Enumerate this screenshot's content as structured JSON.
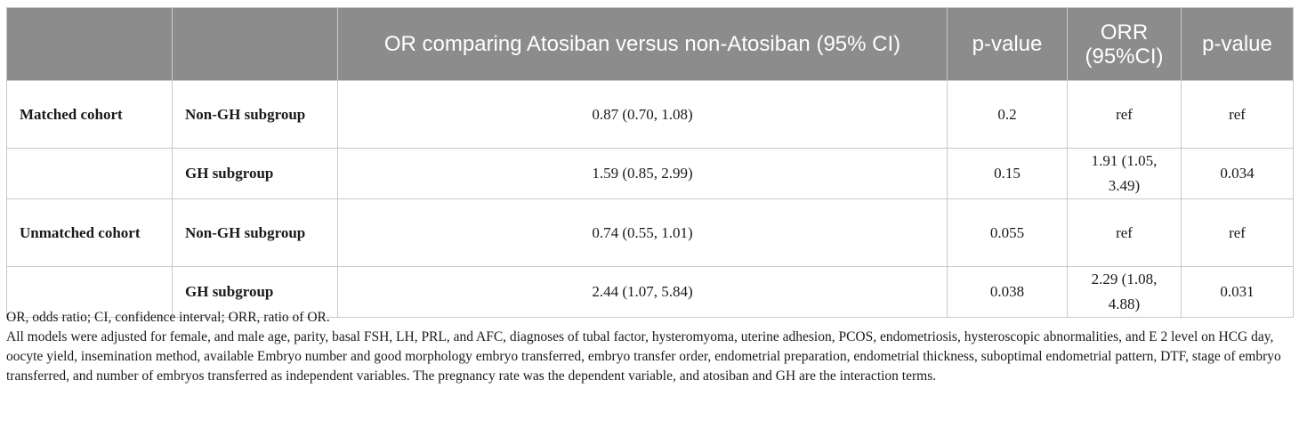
{
  "table": {
    "headers": [
      "",
      "",
      "OR comparing Atosiban versus non-Atosiban (95% CI)",
      "p-value",
      "ORR (95%CI)",
      "p-value"
    ],
    "rows": [
      {
        "cohort": "Matched cohort",
        "subgroup": "Non-GH subgroup",
        "or": "0.87 (0.70, 1.08)",
        "p1": "0.2",
        "orr": "ref",
        "p2": "ref"
      },
      {
        "cohort": "",
        "subgroup": "GH subgroup",
        "or": "1.59 (0.85, 2.99)",
        "p1": "0.15",
        "orr": "1.91 (1.05, 3.49)",
        "p2": "0.034"
      },
      {
        "cohort": "Unmatched cohort",
        "subgroup": "Non-GH subgroup",
        "or": "0.74 (0.55, 1.01)",
        "p1": "0.055",
        "orr": "ref",
        "p2": "ref"
      },
      {
        "cohort": "",
        "subgroup": "GH subgroup",
        "or": "2.44 (1.07, 5.84)",
        "p1": "0.038",
        "orr": "2.29 (1.08, 4.88)",
        "p2": "0.031"
      }
    ]
  },
  "footnotes": {
    "abbreviations": "OR, odds ratio; CI, confidence interval; ORR, ratio of OR.",
    "model_note": "All models were adjusted for female, and male age, parity, basal FSH, LH, PRL, and AFC, diagnoses of tubal factor, hysteromyoma, uterine adhesion, PCOS, endometriosis, hysteroscopic abnormalities, and E 2 level on HCG day, oocyte yield, insemination method, available Embryo number and good morphology embryo transferred, embryo transfer order, endometrial preparation, endometrial thickness, suboptimal endometrial pattern, DTF, stage of embryo transferred, and number of embryos transferred as independent variables. The pregnancy rate was the dependent variable, and atosiban and GH are the interaction terms."
  }
}
